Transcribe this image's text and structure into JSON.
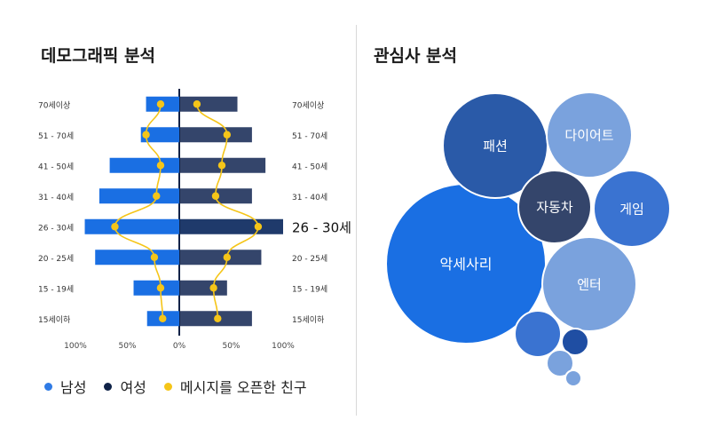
{
  "demographics": {
    "title": "데모그래픽 분석",
    "highlight_label": "26 - 30세",
    "x_tick_labels": [
      "100%",
      "50%",
      "0%",
      "50%",
      "100%"
    ],
    "legend": [
      {
        "label": "남성",
        "color": "#1a6fe3"
      },
      {
        "label": "여성",
        "color": "#0f2247"
      },
      {
        "label": "메시지를 오픈한 친구",
        "color": "#f5c518"
      }
    ]
  },
  "interests": {
    "title": "관심사 분석"
  },
  "colors": {
    "male": "#1a6fe3",
    "female": "#34456b",
    "female_highlight": "#1f3a6b",
    "friends": "#f5c518",
    "axis": "#0f2247"
  },
  "chart_data": [
    {
      "type": "bar",
      "title": "데모그래픽 분석",
      "orientation": "horizontal",
      "categories": [
        "70세이상",
        "51 - 70세",
        "41 - 50세",
        "31 - 40세",
        "26 - 30세",
        "20 - 25세",
        "15 - 19세",
        "15세이하"
      ],
      "xlim": [
        -100,
        100
      ],
      "series": [
        {
          "name": "남성",
          "values": [
            32,
            37,
            67,
            77,
            91,
            81,
            44,
            31
          ]
        },
        {
          "name": "여성",
          "values": [
            56,
            70,
            83,
            70,
            100,
            79,
            46,
            70
          ]
        },
        {
          "name": "메시지를 오픈한 친구 (남성측)",
          "values": [
            -18,
            -32,
            -18,
            -22,
            -62,
            -24,
            -18,
            -16
          ]
        },
        {
          "name": "메시지를 오픈한 친구 (여성측)",
          "values": [
            17,
            46,
            41,
            35,
            76,
            46,
            33,
            37
          ]
        }
      ],
      "highlight_category": "26 - 30세"
    },
    {
      "type": "bubble",
      "title": "관심사 분석",
      "bubbles": [
        {
          "label": "악세사리",
          "value": 100,
          "color": "#1a6fe3"
        },
        {
          "label": "패션",
          "value": 42,
          "color": "#2a5aa8"
        },
        {
          "label": "다이어트",
          "value": 28,
          "color": "#7aa2dd"
        },
        {
          "label": "엔터",
          "value": 34,
          "color": "#7aa2dd"
        },
        {
          "label": "게임",
          "value": 23,
          "color": "#3a73d1"
        },
        {
          "label": "자동차",
          "value": 20,
          "color": "#34456b"
        },
        {
          "label": "",
          "value": 8,
          "color": "#3a73d1"
        },
        {
          "label": "",
          "value": 3,
          "color": "#1f4ea3"
        },
        {
          "label": "",
          "value": 3,
          "color": "#7aa2dd"
        },
        {
          "label": "",
          "value": 1.2,
          "color": "#7aa2dd"
        }
      ]
    }
  ]
}
